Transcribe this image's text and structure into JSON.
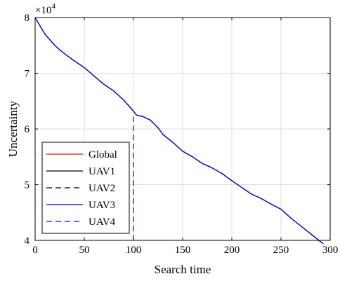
{
  "chart_data": {
    "type": "line",
    "xlabel": "Search time",
    "ylabel": "Uncertainty",
    "xlim": [
      0,
      300
    ],
    "ylim": [
      40000,
      80000
    ],
    "xticks": [
      0,
      50,
      100,
      150,
      200,
      250,
      300
    ],
    "yticks": [
      40000,
      50000,
      60000,
      70000,
      80000
    ],
    "xtick_labels": [
      "0",
      "50",
      "100",
      "150",
      "200",
      "250",
      "300"
    ],
    "ytick_labels": [
      "4",
      "5",
      "6",
      "7",
      "8"
    ],
    "exponent_base": "×10",
    "exponent_power": "4",
    "grid": true,
    "legend_position": "lower-left",
    "series": [
      {
        "name": "Global",
        "color": "#ff0000",
        "dash": "solid",
        "x": [
          0,
          5,
          10,
          15,
          20,
          25,
          30,
          40,
          50,
          60,
          70,
          80,
          90,
          97,
          100,
          103,
          110,
          117,
          120,
          125,
          130,
          140,
          150,
          160,
          170,
          180,
          190,
          200,
          210,
          220,
          230,
          240,
          250,
          260,
          270,
          280,
          290,
          293
        ],
        "y": [
          80000,
          78500,
          77000,
          76000,
          75000,
          74200,
          73500,
          72200,
          71000,
          69500,
          68000,
          66800,
          65200,
          63800,
          63200,
          62500,
          62200,
          61600,
          61100,
          60200,
          59000,
          57600,
          56000,
          55000,
          53800,
          53000,
          52000,
          50700,
          49500,
          48300,
          47500,
          46500,
          45600,
          44000,
          42600,
          41200,
          39800,
          39400
        ]
      },
      {
        "name": "UAV1",
        "color": "#000000",
        "dash": "solid",
        "x": [
          0,
          5,
          10,
          15,
          20,
          25,
          30,
          40,
          50,
          60,
          70,
          80,
          90,
          97,
          100,
          103,
          110,
          117,
          120,
          125,
          130,
          140,
          150,
          160,
          170,
          180,
          190,
          200,
          210,
          220,
          230,
          240,
          250,
          260,
          270,
          280,
          290,
          293
        ],
        "y": [
          80000,
          78500,
          77000,
          76000,
          75000,
          74200,
          73500,
          72200,
          71000,
          69500,
          68000,
          66800,
          65200,
          63800,
          63200,
          62500,
          62200,
          61600,
          61100,
          60200,
          59000,
          57600,
          56000,
          55000,
          53800,
          53000,
          52000,
          50700,
          49500,
          48300,
          47500,
          46500,
          45600,
          44000,
          42600,
          41200,
          39800,
          39400
        ]
      },
      {
        "name": "UAV2",
        "color": "#000000",
        "dash": "dashed",
        "x": [
          0,
          5,
          10,
          15,
          20,
          25,
          30,
          40,
          50,
          60,
          70,
          80,
          90,
          97,
          100,
          103,
          110,
          117,
          120,
          125,
          130,
          140,
          150,
          160,
          170,
          180,
          190,
          200,
          210,
          220,
          230,
          240,
          250,
          260,
          270,
          280,
          290,
          293
        ],
        "y": [
          80000,
          78500,
          77000,
          76000,
          75000,
          74200,
          73500,
          72200,
          71000,
          69500,
          68000,
          66800,
          65200,
          63800,
          63200,
          62500,
          62200,
          61600,
          61100,
          60200,
          59000,
          57600,
          56000,
          55000,
          53800,
          53000,
          52000,
          50700,
          49500,
          48300,
          47500,
          46500,
          45600,
          44000,
          42600,
          41200,
          39800,
          39400
        ]
      },
      {
        "name": "UAV3",
        "color": "#0000ff",
        "dash": "solid",
        "x": [
          0,
          5,
          10,
          15,
          20,
          25,
          30,
          40,
          50,
          60,
          70,
          80,
          90,
          97,
          100,
          103,
          110,
          117,
          120,
          125,
          130,
          140,
          150,
          160,
          170,
          180,
          190,
          200,
          210,
          220,
          230,
          240,
          250,
          260,
          270,
          280,
          290,
          293
        ],
        "y": [
          80000,
          78500,
          77000,
          76000,
          75000,
          74200,
          73500,
          72200,
          71000,
          69500,
          68000,
          66800,
          65200,
          63800,
          63200,
          62500,
          62200,
          61600,
          61100,
          60200,
          59000,
          57600,
          56000,
          55000,
          53800,
          53000,
          52000,
          50700,
          49500,
          48300,
          47500,
          46500,
          45600,
          44000,
          42600,
          41200,
          39800,
          39400
        ]
      },
      {
        "name": "UAV4",
        "color": "#0000ff",
        "dash": "dashed",
        "x": [
          100,
          100
        ],
        "y": [
          40000,
          62200
        ]
      }
    ]
  }
}
